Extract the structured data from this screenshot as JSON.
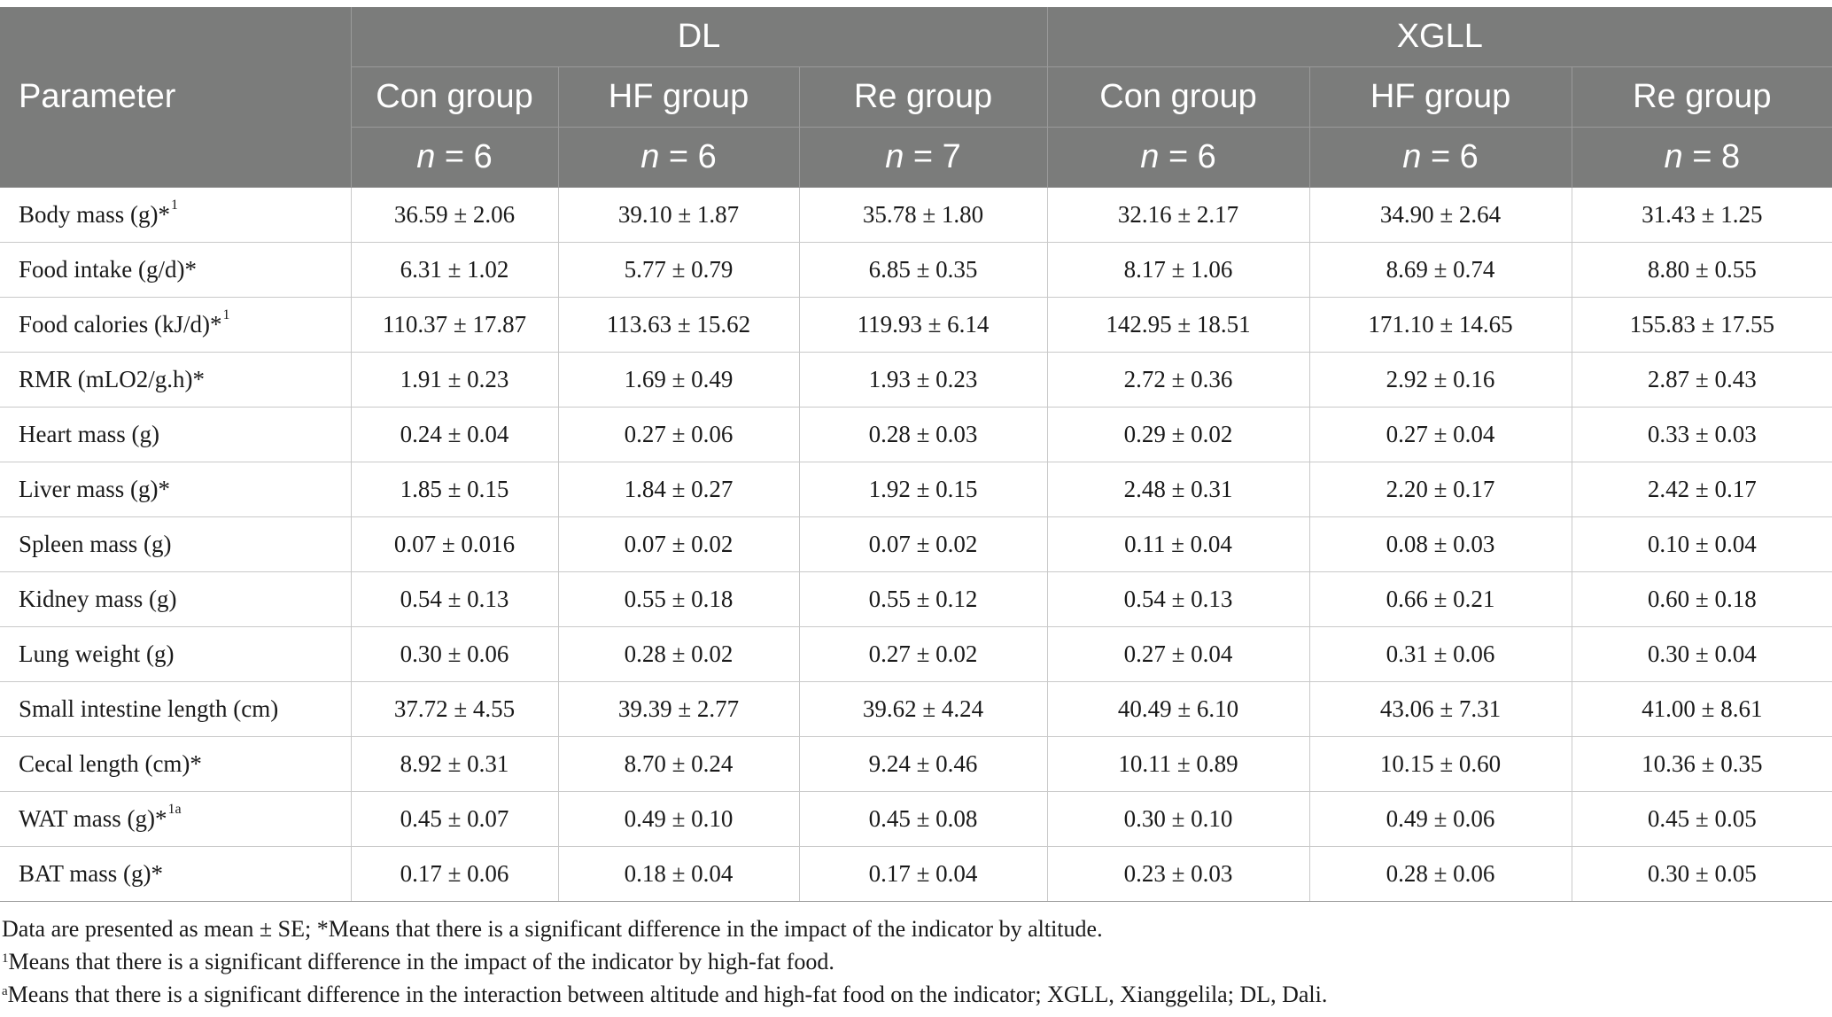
{
  "table": {
    "param_header": "Parameter",
    "sites": [
      {
        "label": "DL"
      },
      {
        "label": "XGLL"
      }
    ],
    "groups": [
      {
        "label": "Con group",
        "n_label": "n",
        "n_value": "= 6"
      },
      {
        "label": "HF group",
        "n_label": "n",
        "n_value": "= 6"
      },
      {
        "label": "Re group",
        "n_label": "n",
        "n_value": "= 7"
      },
      {
        "label": "Con group",
        "n_label": "n",
        "n_value": "= 6"
      },
      {
        "label": "HF group",
        "n_label": "n",
        "n_value": "= 6"
      },
      {
        "label": "Re group",
        "n_label": "n",
        "n_value": "= 8"
      }
    ],
    "rows": [
      {
        "param": "Body mass (g)*",
        "mark": "1",
        "values": [
          "36.59 ± 2.06",
          "39.10 ± 1.87",
          "35.78 ± 1.80",
          "32.16 ± 2.17",
          "34.90 ± 2.64",
          "31.43 ± 1.25"
        ]
      },
      {
        "param": "Food intake (g/d)*",
        "mark": "",
        "values": [
          "6.31 ± 1.02",
          "5.77 ± 0.79",
          "6.85 ± 0.35",
          "8.17 ± 1.06",
          "8.69 ± 0.74",
          "8.80 ± 0.55"
        ]
      },
      {
        "param": "Food calories (kJ/d)*",
        "mark": "1",
        "values": [
          "110.37 ± 17.87",
          "113.63 ± 15.62",
          "119.93 ± 6.14",
          "142.95 ± 18.51",
          "171.10 ± 14.65",
          "155.83 ± 17.55"
        ]
      },
      {
        "param": "RMR (mLO2/g.h)*",
        "mark": "",
        "values": [
          "1.91 ± 0.23",
          "1.69 ± 0.49",
          "1.93 ± 0.23",
          "2.72 ± 0.36",
          "2.92 ± 0.16",
          "2.87 ± 0.43"
        ]
      },
      {
        "param": "Heart mass (g)",
        "mark": "",
        "values": [
          "0.24 ± 0.04",
          "0.27 ± 0.06",
          "0.28 ± 0.03",
          "0.29 ± 0.02",
          "0.27 ± 0.04",
          "0.33 ± 0.03"
        ]
      },
      {
        "param": "Liver mass (g)*",
        "mark": "",
        "values": [
          "1.85 ± 0.15",
          "1.84 ± 0.27",
          "1.92 ± 0.15",
          "2.48 ± 0.31",
          "2.20 ± 0.17",
          "2.42 ± 0.17"
        ]
      },
      {
        "param": "Spleen mass (g)",
        "mark": "",
        "values": [
          "0.07 ± 0.016",
          "0.07 ± 0.02",
          "0.07 ± 0.02",
          "0.11 ± 0.04",
          "0.08 ± 0.03",
          "0.10 ± 0.04"
        ]
      },
      {
        "param": "Kidney mass (g)",
        "mark": "",
        "values": [
          "0.54 ± 0.13",
          "0.55 ± 0.18",
          "0.55 ± 0.12",
          "0.54 ± 0.13",
          "0.66 ± 0.21",
          "0.60 ± 0.18"
        ]
      },
      {
        "param": "Lung weight (g)",
        "mark": "",
        "values": [
          "0.30 ± 0.06",
          "0.28 ± 0.02",
          "0.27 ± 0.02",
          "0.27 ± 0.04",
          "0.31 ± 0.06",
          "0.30 ± 0.04"
        ]
      },
      {
        "param": "Small intestine length (cm)",
        "mark": "",
        "values": [
          "37.72 ± 4.55",
          "39.39 ± 2.77",
          "39.62 ± 4.24",
          "40.49 ± 6.10",
          "43.06 ± 7.31",
          "41.00 ± 8.61"
        ]
      },
      {
        "param": "Cecal length (cm)*",
        "mark": "",
        "values": [
          "8.92 ± 0.31",
          "8.70 ± 0.24",
          "9.24 ± 0.46",
          "10.11 ± 0.89",
          "10.15 ± 0.60",
          "10.36 ± 0.35"
        ]
      },
      {
        "param": "WAT mass (g)*",
        "mark": "1a",
        "values": [
          "0.45 ± 0.07",
          "0.49 ± 0.10",
          "0.45 ± 0.08",
          "0.30 ± 0.10",
          "0.49 ± 0.06",
          "0.45 ± 0.05"
        ]
      },
      {
        "param": "BAT mass (g)*",
        "mark": "",
        "values": [
          "0.17 ± 0.06",
          "0.18 ± 0.04",
          "0.17 ± 0.04",
          "0.23 ± 0.03",
          "0.28 ± 0.06",
          "0.30 ± 0.05"
        ]
      }
    ]
  },
  "notes": [
    {
      "sup": "",
      "text": "Data are presented as mean ± SE; *Means that there is a significant difference in the impact of the indicator by altitude."
    },
    {
      "sup": "1",
      "text": "Means that there is a significant difference in the impact of the indicator by high-fat food."
    },
    {
      "sup": "a",
      "text": "Means that there is a significant difference in the interaction between altitude and high-fat food on the indicator; XGLL, Xianggelila; DL, Dali."
    }
  ]
}
